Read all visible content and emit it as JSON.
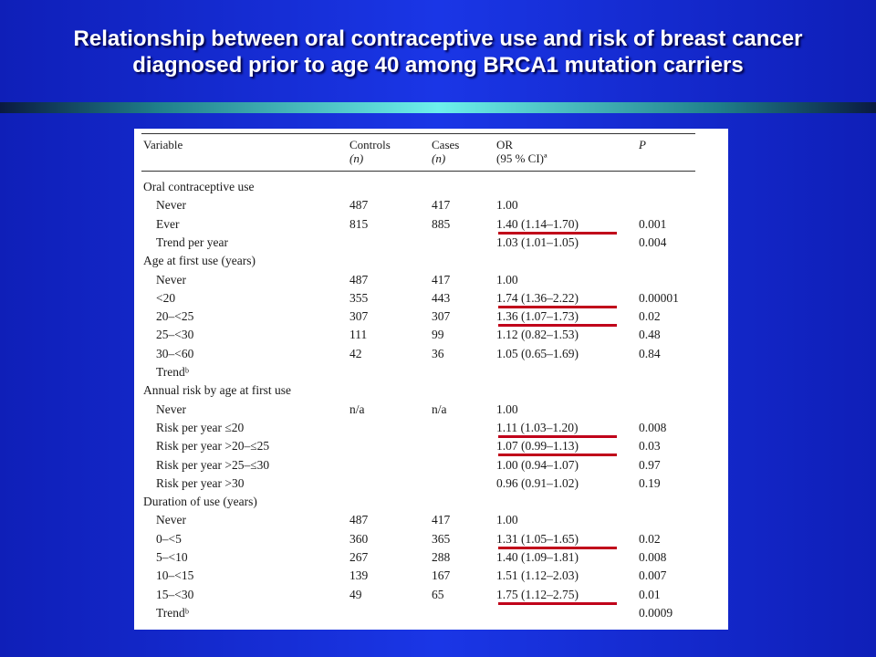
{
  "slide": {
    "title_line1": "Relationship between oral contraceptive use and risk of breast cancer",
    "title_line2": "diagnosed prior to age 40 among BRCA1 mutation carriers"
  },
  "table": {
    "headers": {
      "variable": "Variable",
      "controls": "Controls",
      "controls_sub": "(n)",
      "cases": "Cases",
      "cases_sub": "(n)",
      "or": "OR",
      "or_sub": "(95 % CI)ª",
      "p": "P"
    },
    "rows": [
      {
        "variable": "Oral contraceptive use",
        "controls": "",
        "cases": "",
        "or": "",
        "p": "",
        "section": true
      },
      {
        "variable": "Never",
        "controls": "487",
        "cases": "417",
        "or": "1.00",
        "p": ""
      },
      {
        "variable": "Ever",
        "controls": "815",
        "cases": "885",
        "or": "1.40 (1.14–1.70)",
        "p": "0.001",
        "underlined": true
      },
      {
        "variable": "Trend per year",
        "controls": "",
        "cases": "",
        "or": "1.03 (1.01–1.05)",
        "p": "0.004"
      },
      {
        "variable": "Age at first use (years)",
        "controls": "",
        "cases": "",
        "or": "",
        "p": "",
        "section": true
      },
      {
        "variable": "Never",
        "controls": "487",
        "cases": "417",
        "or": "1.00",
        "p": ""
      },
      {
        "variable": "<20",
        "controls": "355",
        "cases": "443",
        "or": "1.74 (1.36–2.22)",
        "p": "0.00001",
        "underlined": true
      },
      {
        "variable": "20–<25",
        "controls": "307",
        "cases": "307",
        "or": "1.36 (1.07–1.73)",
        "p": "0.02",
        "underlined": true
      },
      {
        "variable": "25–<30",
        "controls": "111",
        "cases": "99",
        "or": "1.12 (0.82–1.53)",
        "p": "0.48"
      },
      {
        "variable": "30–<60",
        "controls": "42",
        "cases": "36",
        "or": "1.05 (0.65–1.69)",
        "p": "0.84"
      },
      {
        "variable": "Trendᵇ",
        "controls": "",
        "cases": "",
        "or": "",
        "p": ""
      },
      {
        "variable": "Annual risk by age at first use",
        "controls": "",
        "cases": "",
        "or": "",
        "p": "",
        "section": true
      },
      {
        "variable": "Never",
        "controls": "n/a",
        "cases": "n/a",
        "or": "1.00",
        "p": ""
      },
      {
        "variable": "Risk per year ≤20",
        "controls": "",
        "cases": "",
        "or": "1.11 (1.03–1.20)",
        "p": "0.008",
        "underlined": true
      },
      {
        "variable": "Risk per year >20–≤25",
        "controls": "",
        "cases": "",
        "or": "1.07 (0.99–1.13)",
        "p": "0.03",
        "underlined": true
      },
      {
        "variable": "Risk per year >25–≤30",
        "controls": "",
        "cases": "",
        "or": "1.00 (0.94–1.07)",
        "p": "0.97"
      },
      {
        "variable": "Risk per year >30",
        "controls": "",
        "cases": "",
        "or": "0.96 (0.91–1.02)",
        "p": "0.19"
      },
      {
        "variable": "Duration of use (years)",
        "controls": "",
        "cases": "",
        "or": "",
        "p": "",
        "section": true
      },
      {
        "variable": "Never",
        "controls": "487",
        "cases": "417",
        "or": "1.00",
        "p": ""
      },
      {
        "variable": "0–<5",
        "controls": "360",
        "cases": "365",
        "or": "1.31 (1.05–1.65)",
        "p": "0.02",
        "underlined": true
      },
      {
        "variable": "5–<10",
        "controls": "267",
        "cases": "288",
        "or": "1.40 (1.09–1.81)",
        "p": "0.008"
      },
      {
        "variable": "10–<15",
        "controls": "139",
        "cases": "167",
        "or": "1.51 (1.12–2.03)",
        "p": "0.007"
      },
      {
        "variable": "15–<30",
        "controls": "49",
        "cases": "65",
        "or": "1.75 (1.12–2.75)",
        "p": "0.01",
        "underlined": true
      },
      {
        "variable": "Trendᵇ",
        "controls": "",
        "cases": "",
        "or": "",
        "p": "0.0009"
      }
    ]
  },
  "colors": {
    "background": "#1a36e6",
    "underline": "#c0001a",
    "title_text": "#ffffff"
  }
}
